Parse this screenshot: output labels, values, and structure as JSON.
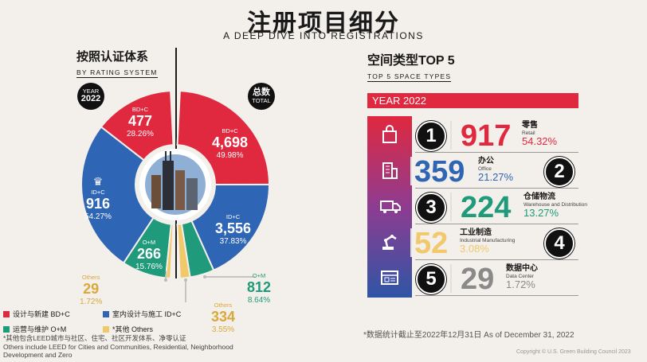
{
  "header": {
    "title": "注册项目细分",
    "subtitle": "A DEEP DIVE INTO REGISTRATIONS"
  },
  "left": {
    "heading_zh": "按照认证体系",
    "heading_en": "BY RATING SYSTEM",
    "year_badge": {
      "line1": "YEAR",
      "line2": "2022"
    },
    "total_badge": {
      "line1": "总数",
      "line2": "TOTAL"
    },
    "labels": {
      "bdc_2022": {
        "cat": "BD+C",
        "value": "477",
        "pct": "28.26%"
      },
      "idc_2022": {
        "cat": "ID+C",
        "value": "916",
        "pct": "54.27%"
      },
      "om_2022": {
        "cat": "O+M",
        "value": "266",
        "pct": "15.76%"
      },
      "others_2022": {
        "cat": "Others",
        "value": "29",
        "pct": "1.72%"
      },
      "bdc_total": {
        "cat": "BD+C",
        "value": "4,698",
        "pct": "49.98%"
      },
      "idc_total": {
        "cat": "ID+C",
        "value": "3,556",
        "pct": "37.83%"
      },
      "om_total": {
        "cat": "O+M",
        "value": "812",
        "pct": "8.64%"
      },
      "others_total": {
        "cat": "Others",
        "value": "334",
        "pct": "3.55%"
      }
    },
    "legend": [
      {
        "label": "设计与新建 BD+C",
        "color": "#e0283f"
      },
      {
        "label": "室内设计与施工 ID+C",
        "color": "#2f65b5"
      },
      {
        "label": "运营与维护 O+M",
        "color": "#1f9a7a"
      },
      {
        "label": "*其他 Others",
        "color": "#f1c86a"
      }
    ],
    "note_zh": "*其他包含LEED城市与社区、住宅、社区开发体系、净零认证",
    "note_en": "Others include LEED for Cities and Communities, Residential, Neighborhood Development and Zero"
  },
  "right": {
    "heading_zh": "空间类型TOP 5",
    "heading_en": "TOP 5 SPACE TYPES",
    "year": "YEAR 2022",
    "items": [
      {
        "rank": "1",
        "value": "917",
        "zh": "零售",
        "en": "Retail",
        "pct": "54.32%",
        "color": "#e0283f",
        "icon": "shopping-bag-icon"
      },
      {
        "rank": "2",
        "value": "359",
        "zh": "办公",
        "en": "Office",
        "pct": "21.27%",
        "color": "#2f65b5",
        "icon": "office-building-icon"
      },
      {
        "rank": "3",
        "value": "224",
        "zh": "仓储物流",
        "en": "Warehouse and Distribution",
        "pct": "13.27%",
        "color": "#1f9a7a",
        "icon": "delivery-truck-icon"
      },
      {
        "rank": "4",
        "value": "52",
        "zh": "工业制造",
        "en": "Industrial Manufacturing",
        "pct": "3.08%",
        "color": "#f1c86a",
        "icon": "robot-arm-icon"
      },
      {
        "rank": "5",
        "value": "29",
        "zh": "数据中心",
        "en": "Data Center",
        "pct": "1.72%",
        "color": "#8a8a8a",
        "icon": "data-center-icon"
      }
    ],
    "footnote": "*数据统计截止至2022年12月31日 As of December 31, 2022",
    "copyright": "Copyright © U.S. Green Building Council 2023"
  },
  "chart_data": [
    {
      "type": "pie",
      "title": "YEAR 2022",
      "categories": [
        "BD+C",
        "ID+C",
        "O+M",
        "Others"
      ],
      "values": [
        477,
        916,
        266,
        29
      ],
      "percent": [
        28.26,
        54.27,
        15.76,
        1.72
      ]
    },
    {
      "type": "pie",
      "title": "总数 TOTAL",
      "categories": [
        "BD+C",
        "ID+C",
        "O+M",
        "Others"
      ],
      "values": [
        4698,
        3556,
        812,
        334
      ],
      "percent": [
        49.98,
        37.83,
        8.64,
        3.55
      ]
    },
    {
      "type": "bar",
      "title": "空间类型TOP 5",
      "categories": [
        "零售",
        "办公",
        "仓储物流",
        "工业制造",
        "数据中心"
      ],
      "values": [
        917,
        359,
        224,
        52,
        29
      ],
      "percent": [
        54.32,
        21.27,
        13.27,
        3.08,
        1.72
      ]
    }
  ]
}
